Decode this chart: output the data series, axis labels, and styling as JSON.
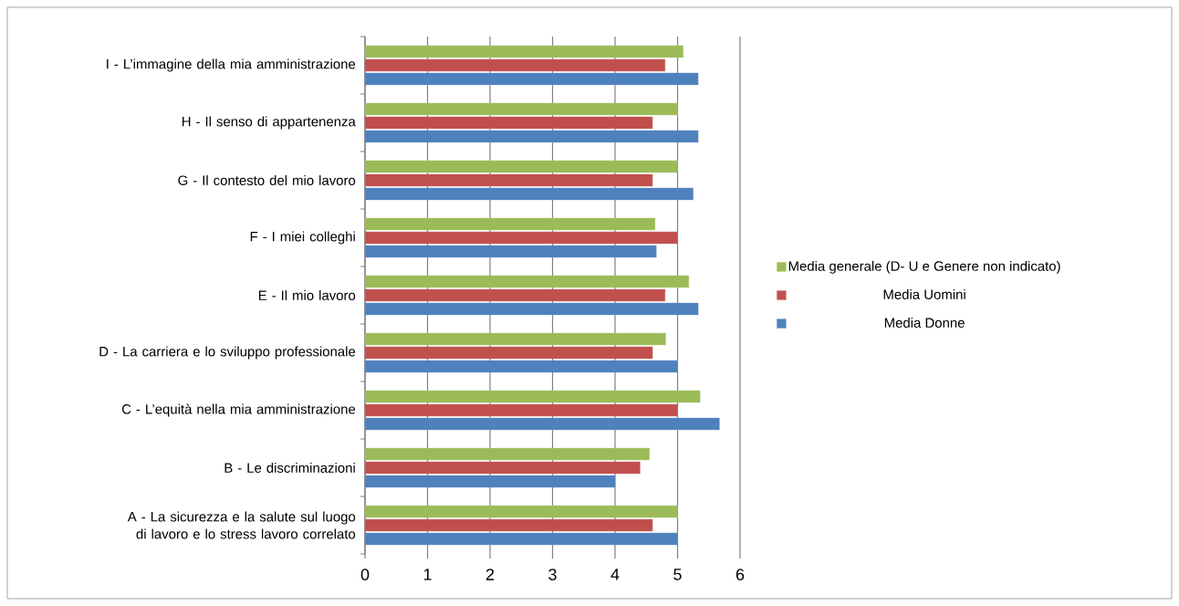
{
  "chart_data": {
    "type": "bar",
    "orientation": "horizontal",
    "categories": [
      "I - L’immagine della mia amministrazione",
      "H - Il senso di appartenenza",
      "G - Il contesto del mio lavoro",
      "F - I miei colleghi",
      "E - Il mio lavoro",
      "D - La carriera e lo sviluppo professionale",
      "C - L’equità nella mia amministrazione",
      "B - Le discriminazioni",
      "A - La sicurezza e la salute sul luogo di lavoro e lo stress lavoro correlato"
    ],
    "series": [
      {
        "name": "Media Donne",
        "color": "#4f81bd",
        "values": [
          5.33,
          5.33,
          5.25,
          4.66,
          5.33,
          5.0,
          5.67,
          4.0,
          5.0
        ]
      },
      {
        "name": "Media Uomini",
        "color": "#c0504d",
        "values": [
          4.8,
          4.6,
          4.6,
          5.0,
          4.8,
          4.6,
          5.0,
          4.4,
          4.6
        ]
      },
      {
        "name": "Media generale (D- U e Genere non indicato)",
        "color": "#9bbb59",
        "values": [
          5.09,
          5.0,
          5.0,
          4.64,
          5.18,
          4.81,
          5.36,
          4.55,
          5.0
        ]
      }
    ],
    "xlim": [
      0,
      6
    ],
    "xticks": [
      0,
      1,
      2,
      3,
      4,
      5,
      6
    ],
    "grid": "x",
    "legend": "right"
  }
}
